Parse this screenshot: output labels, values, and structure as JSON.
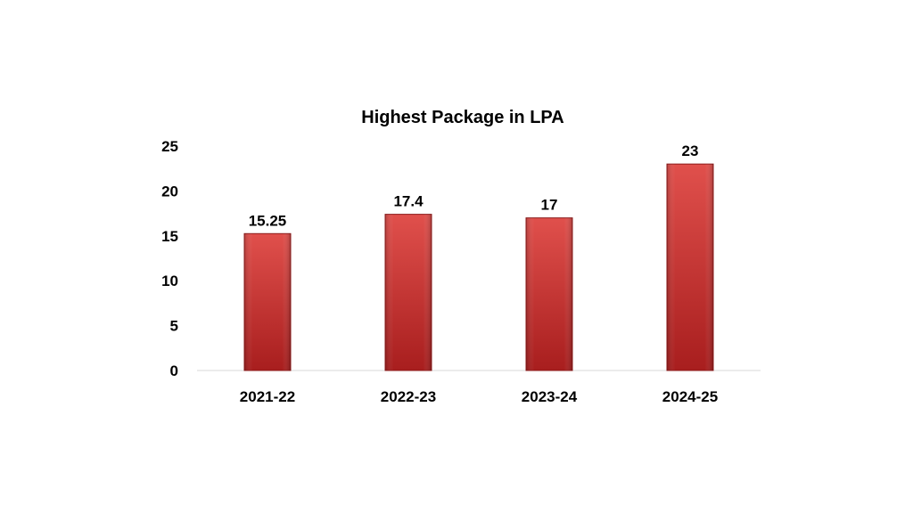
{
  "colors": {
    "bar_top": "#e0504c",
    "bar_bottom": "#a81e1e",
    "axis": "#d9d9d9"
  },
  "chart_data": {
    "type": "bar",
    "title": "Highest Package in LPA",
    "categories": [
      "2021-22",
      "2022-23",
      "2023-24",
      "2024-25"
    ],
    "values": [
      15.25,
      17.4,
      17,
      23
    ],
    "data_labels": [
      "15.25",
      "17.4",
      "17",
      "23"
    ],
    "y_ticks": [
      "0",
      "5",
      "10",
      "15",
      "20",
      "25"
    ],
    "ylim": [
      0,
      25
    ],
    "xlabel": "",
    "ylabel": "",
    "grid": false,
    "legend": "none"
  }
}
